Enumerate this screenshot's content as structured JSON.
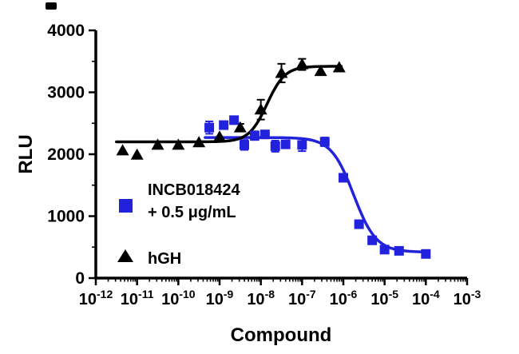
{
  "chart_data": {
    "type": "scatter",
    "title": "",
    "xlabel": "Compound",
    "ylabel": "RLU",
    "x_scale": "log10",
    "xlog_min": -12,
    "xlog_max": -3,
    "ylim": [
      0,
      4000
    ],
    "yticks": [
      0,
      1000,
      2000,
      3000,
      4000
    ],
    "yminor_ticks": [
      500,
      1500,
      2500,
      3500
    ],
    "xtick_exponents": [
      -12,
      -11,
      -10,
      -9,
      -8,
      -7,
      -6,
      -5,
      -4,
      -3
    ],
    "grid": false,
    "legend_position": "inside-left",
    "series": [
      {
        "name": "INCB018424 + 0.5 μg/mL",
        "marker": "square",
        "color": "#2222dd",
        "points": [
          [
            -9.25,
            2430,
            100
          ],
          [
            -8.9,
            2470,
            0
          ],
          [
            -8.65,
            2550,
            0
          ],
          [
            -8.4,
            2150,
            80
          ],
          [
            -8.15,
            2300,
            70
          ],
          [
            -7.9,
            2320,
            0
          ],
          [
            -7.65,
            2130,
            90
          ],
          [
            -7.4,
            2160,
            0
          ],
          [
            -7.0,
            2150,
            100
          ],
          [
            -6.45,
            2200,
            70
          ],
          [
            -6.0,
            1620,
            50
          ],
          [
            -5.62,
            870,
            0
          ],
          [
            -5.3,
            610,
            0
          ],
          [
            -5.0,
            460,
            0
          ],
          [
            -4.65,
            440,
            0
          ],
          [
            -4.0,
            390,
            0
          ]
        ],
        "fit_curve": {
          "bottom": 420,
          "top": 2270,
          "logec50": -5.75,
          "hill": -1.6,
          "xstart": -9.35,
          "xend": -3.95
        }
      },
      {
        "name": "hGH",
        "marker": "triangle",
        "color": "#000000",
        "points": [
          [
            -11.35,
            2060,
            0
          ],
          [
            -11.0,
            1990,
            0
          ],
          [
            -10.5,
            2150,
            0
          ],
          [
            -10.0,
            2150,
            0
          ],
          [
            -9.5,
            2190,
            0
          ],
          [
            -9.0,
            2280,
            0
          ],
          [
            -8.5,
            2430,
            60
          ],
          [
            -8.0,
            2720,
            160
          ],
          [
            -7.5,
            3310,
            150
          ],
          [
            -7.0,
            3450,
            90
          ],
          [
            -6.55,
            3340,
            0
          ],
          [
            -6.1,
            3400,
            0
          ]
        ],
        "fit_curve": {
          "bottom": 2200,
          "top": 3420,
          "logec50": -7.85,
          "hill": 2.0,
          "xstart": -11.5,
          "xend": -6.05
        }
      }
    ]
  },
  "legend": {
    "incb_line1": "INCB018424",
    "incb_line2": "+ 0.5 μg/mL",
    "hgh": "hGH"
  }
}
